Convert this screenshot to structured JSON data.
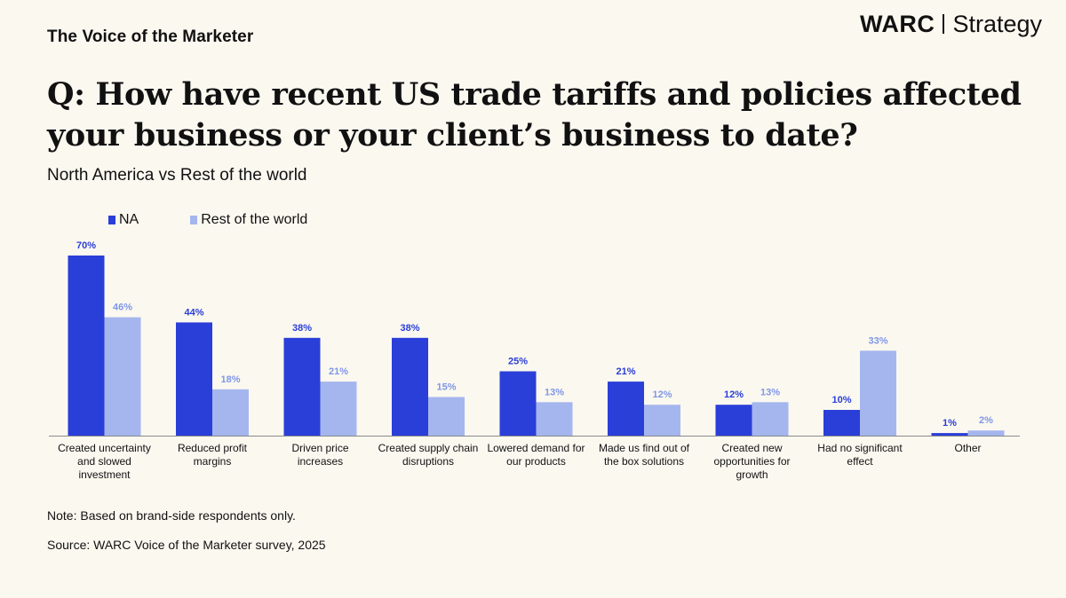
{
  "header": {
    "kicker": "The Voice of the Marketer",
    "brand_main": "WARC",
    "brand_sub": "Strategy"
  },
  "title_line1": "Q: How have recent US trade tariffs and policies affected",
  "title_line2": "your business or your client’s business to date?",
  "subtitle": "North America vs Rest of the world",
  "colors": {
    "na": "#2a3ed8",
    "row": "#a5b6ee",
    "na_label": "#2a3ed8",
    "row_label": "#7f97e8"
  },
  "chart_data": {
    "type": "bar",
    "title": "",
    "xlabel": "",
    "ylabel": "",
    "ylim": [
      0,
      70
    ],
    "legend_position": "top-left",
    "grid": false,
    "categories": [
      [
        "Created uncertainty",
        "and slowed",
        "investment"
      ],
      [
        "Reduced profit",
        "margins"
      ],
      [
        "Driven price",
        "increases"
      ],
      [
        "Created supply chain",
        "disruptions"
      ],
      [
        "Lowered demand for",
        "our products"
      ],
      [
        "Made us find out of",
        "the box solutions"
      ],
      [
        "Created new",
        "opportunities for",
        "growth"
      ],
      [
        "Had no significant",
        "effect"
      ],
      [
        "Other"
      ]
    ],
    "series": [
      {
        "name": "NA",
        "values": [
          70,
          44,
          38,
          38,
          25,
          21,
          12,
          10,
          1
        ]
      },
      {
        "name": "Rest of the world",
        "values": [
          46,
          18,
          21,
          15,
          13,
          12,
          13,
          33,
          2
        ]
      }
    ]
  },
  "note": "Note: Based on brand-side respondents only.",
  "source": "Source: WARC Voice of the Marketer survey, 2025"
}
